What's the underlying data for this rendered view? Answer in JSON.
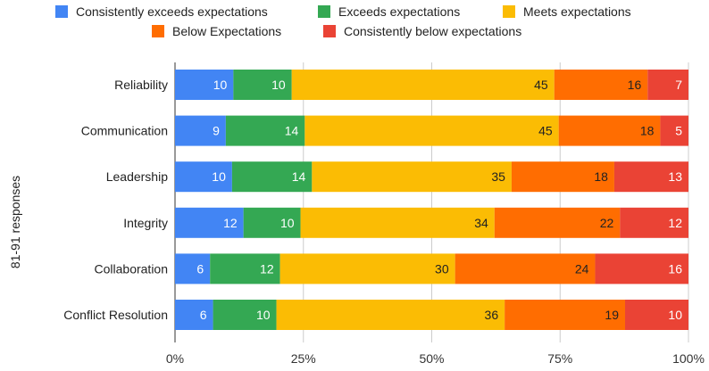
{
  "chart_data": {
    "type": "bar",
    "orientation": "horizontal",
    "stacked": "percent",
    "ylabel": "81-91 responses",
    "xlabel": "",
    "title": "",
    "legend_position": "top",
    "grid": true,
    "x_ticks": [
      "0%",
      "25%",
      "50%",
      "75%",
      "100%"
    ],
    "xlim": [
      0,
      100
    ],
    "categories": [
      "Reliability",
      "Communication",
      "Leadership",
      "Integrity",
      "Collaboration",
      "Conflict Resolution"
    ],
    "series": [
      {
        "name": "Consistently exceeds expectations",
        "color": "#4285F4",
        "label_color": "#ffffff",
        "values": [
          10,
          9,
          10,
          12,
          6,
          6
        ]
      },
      {
        "name": "Exceeds expectations",
        "color": "#34A853",
        "label_color": "#ffffff",
        "values": [
          10,
          14,
          14,
          10,
          12,
          10
        ]
      },
      {
        "name": "Meets expectations",
        "color": "#FBBC04",
        "label_color": "#222222",
        "values": [
          45,
          45,
          35,
          34,
          30,
          36
        ]
      },
      {
        "name": "Below Expectations",
        "color": "#FF6D01",
        "label_color": "#222222",
        "values": [
          16,
          18,
          18,
          22,
          24,
          19
        ]
      },
      {
        "name": "Consistently below expectations",
        "color": "#EA4335",
        "label_color": "#ffffff",
        "values": [
          7,
          5,
          13,
          12,
          16,
          10
        ]
      }
    ]
  }
}
